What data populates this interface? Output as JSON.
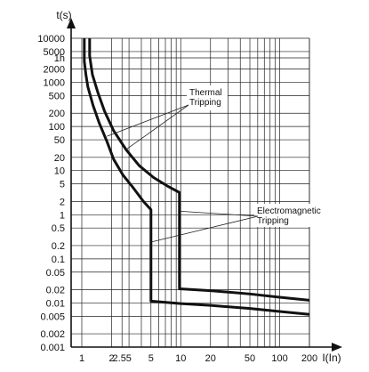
{
  "chart_data": {
    "type": "line",
    "xscale": "log",
    "yscale": "log",
    "xlim": [
      0.78,
      200
    ],
    "ylim": [
      0.001,
      10000
    ],
    "grid": true,
    "xlabel": "I(In)",
    "ylabel": "t(s)",
    "x_ticks": [
      {
        "value": 1,
        "label": "1"
      },
      {
        "value": 2,
        "label": "2"
      },
      {
        "value": 2.55,
        "label": "2.55"
      },
      {
        "value": 5,
        "label": "5"
      },
      {
        "value": 10,
        "label": "10"
      },
      {
        "value": 20,
        "label": "20"
      },
      {
        "value": 50,
        "label": "50"
      },
      {
        "value": 100,
        "label": "100"
      },
      {
        "value": 200,
        "label": "200"
      }
    ],
    "x_gridlines": [
      1,
      2,
      2.55,
      3,
      4,
      5,
      6,
      7,
      8,
      9,
      10,
      20,
      30,
      40,
      50,
      60,
      70,
      80,
      90,
      100,
      200
    ],
    "y_ticks": [
      {
        "value": 10000,
        "label": "10000"
      },
      {
        "value": 5000,
        "label": "5000"
      },
      {
        "value": 3600,
        "label": "1h"
      },
      {
        "value": 2000,
        "label": "2000"
      },
      {
        "value": 1000,
        "label": "1000"
      },
      {
        "value": 500,
        "label": "500"
      },
      {
        "value": 200,
        "label": "200"
      },
      {
        "value": 100,
        "label": "100"
      },
      {
        "value": 50,
        "label": "50"
      },
      {
        "value": 20,
        "label": "20"
      },
      {
        "value": 10,
        "label": "10"
      },
      {
        "value": 5,
        "label": "5"
      },
      {
        "value": 2,
        "label": "2"
      },
      {
        "value": 1,
        "label": "1"
      },
      {
        "value": 0.5,
        "label": "0.5"
      },
      {
        "value": 0.2,
        "label": "0.2"
      },
      {
        "value": 0.1,
        "label": "0.1"
      },
      {
        "value": 0.05,
        "label": "0.05"
      },
      {
        "value": 0.02,
        "label": "0.02"
      },
      {
        "value": 0.01,
        "label": "0.01"
      },
      {
        "value": 0.005,
        "label": "0.005"
      },
      {
        "value": 0.002,
        "label": "0.002"
      },
      {
        "value": 0.001,
        "label": "0.001"
      }
    ],
    "series": [
      {
        "points": [
          [
            1.06,
            10000
          ],
          [
            1.06,
            3000
          ],
          [
            1.1,
            1500
          ],
          [
            1.15,
            800
          ],
          [
            1.3,
            300
          ],
          [
            1.5,
            120
          ],
          [
            1.8,
            45
          ],
          [
            2.1,
            18
          ],
          [
            2.6,
            8
          ],
          [
            3.2,
            4.5
          ],
          [
            4.2,
            2
          ],
          [
            5.0,
            1.3
          ],
          [
            5.0,
            0.011
          ],
          [
            10,
            0.0097
          ],
          [
            20,
            0.0088
          ],
          [
            50,
            0.0075
          ],
          [
            100,
            0.0064
          ],
          [
            200,
            0.0055
          ]
        ]
      },
      {
        "points": [
          [
            1.2,
            10000
          ],
          [
            1.2,
            4000
          ],
          [
            1.28,
            1500
          ],
          [
            1.45,
            600
          ],
          [
            1.7,
            220
          ],
          [
            2.1,
            80
          ],
          [
            2.8,
            30
          ],
          [
            3.8,
            13
          ],
          [
            5.3,
            7
          ],
          [
            7.3,
            4.5
          ],
          [
            9.7,
            3.2
          ],
          [
            9.7,
            0.021
          ],
          [
            20,
            0.019
          ],
          [
            50,
            0.016
          ],
          [
            100,
            0.0135
          ],
          [
            200,
            0.0115
          ]
        ]
      }
    ],
    "annotations": [
      {
        "lines": [
          "Thermal",
          "Tripping"
        ],
        "targets": [
          [
            1.8,
            60
          ],
          [
            2.8,
            30
          ]
        ]
      },
      {
        "lines": [
          "Electromagnetic",
          "Tripping"
        ],
        "targets": [
          [
            10,
            1.2
          ],
          [
            5,
            0.24
          ]
        ]
      }
    ]
  }
}
